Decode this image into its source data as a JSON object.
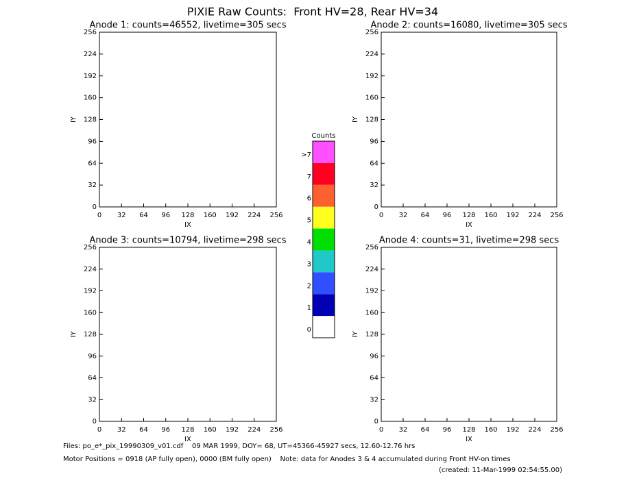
{
  "title": "PIXIE Raw Counts:  Front HV=28, Rear HV=34",
  "chart_data": [
    {
      "type": "heatmap",
      "title": "Anode 1: counts=46552, livetime=305 secs",
      "xlabel": "IX",
      "ylabel": "IY",
      "xlim": [
        0,
        256
      ],
      "ylim": [
        0,
        256
      ],
      "xticks": [
        0,
        32,
        64,
        96,
        128,
        160,
        192,
        224,
        256
      ],
      "yticks": [
        0,
        32,
        64,
        96,
        128,
        160,
        192,
        224,
        256
      ]
    },
    {
      "type": "heatmap",
      "title": "Anode 2: counts=16080, livetime=305 secs",
      "xlabel": "IX",
      "ylabel": "IY",
      "xlim": [
        0,
        256
      ],
      "ylim": [
        0,
        256
      ],
      "xticks": [
        0,
        32,
        64,
        96,
        128,
        160,
        192,
        224,
        256
      ],
      "yticks": [
        0,
        32,
        64,
        96,
        128,
        160,
        192,
        224,
        256
      ]
    },
    {
      "type": "heatmap",
      "title": "Anode 3: counts=10794, livetime=298 secs",
      "xlabel": "IX",
      "ylabel": "IY",
      "xlim": [
        0,
        256
      ],
      "ylim": [
        0,
        256
      ],
      "xticks": [
        0,
        32,
        64,
        96,
        128,
        160,
        192,
        224,
        256
      ],
      "yticks": [
        0,
        32,
        64,
        96,
        128,
        160,
        192,
        224,
        256
      ]
    },
    {
      "type": "heatmap",
      "title": "Anode 4: counts=31, livetime=298 secs",
      "xlabel": "IX",
      "ylabel": "IY",
      "xlim": [
        0,
        256
      ],
      "ylim": [
        0,
        256
      ],
      "xticks": [
        0,
        32,
        64,
        96,
        128,
        160,
        192,
        224,
        256
      ],
      "yticks": [
        0,
        32,
        64,
        96,
        128,
        160,
        192,
        224,
        256
      ]
    }
  ],
  "colorbar": {
    "title": "Counts",
    "levels": [
      "0",
      "1",
      "2",
      "3",
      "4",
      "5",
      "6",
      "7",
      ">7"
    ],
    "colors": [
      "#ffffff",
      "#0000b4",
      "#3050ff",
      "#20c8c8",
      "#00e000",
      "#ffff20",
      "#ff6030",
      "#ff0020",
      "#ff50ff"
    ]
  },
  "footer": {
    "files": "Files: po_e*_pix_19990309_v01.cdf    09 MAR 1999, DOY= 68, UT=45366-45927 secs, 12.60-12.76 hrs",
    "motor": "Motor Positions = 0918 (AP fully open), 0000 (BM fully open)    Note: data for Anodes 3 & 4 accumulated during Front HV-on times",
    "created": "(created: 11-Mar-1999 02:54:55.00)"
  }
}
